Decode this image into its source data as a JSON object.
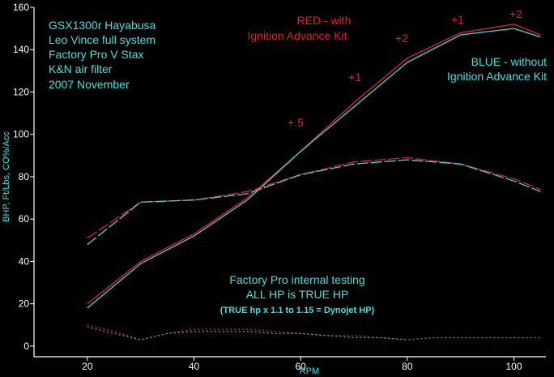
{
  "chart_data": {
    "type": "line",
    "xlabel": "RPM",
    "ylabel": "BHP, Ft/Lbs, CO%/Acc",
    "xlim": [
      10,
      106
    ],
    "ylim": [
      -5,
      160
    ],
    "xticks": [
      20,
      40,
      60,
      80,
      100
    ],
    "yticks": [
      0,
      20,
      40,
      60,
      80,
      100,
      120,
      140,
      160
    ],
    "grid": false,
    "colors": {
      "background": "#000000",
      "axis": "#ffffff",
      "red": "#e0202a",
      "blue": "#3fd8d8",
      "cyan_text": "#40e0e0",
      "green_dotted": "#3fae6a"
    },
    "series": [
      {
        "style": "solid",
        "color": "#e0202a",
        "x": [
          20,
          30,
          40,
          50,
          60,
          70,
          80,
          90,
          100,
          105
        ],
        "y": [
          20,
          40,
          53,
          70,
          92,
          115,
          136,
          148,
          152,
          147
        ]
      },
      {
        "style": "solid",
        "color": "#3fd8d8",
        "x": [
          20,
          30,
          40,
          50,
          60,
          70,
          80,
          90,
          100,
          105
        ],
        "y": [
          18,
          39,
          52,
          69,
          92,
          113,
          134,
          147,
          150,
          146
        ]
      },
      {
        "style": "dashed",
        "color": "#e0202a",
        "x": [
          20,
          30,
          40,
          50,
          60,
          70,
          80,
          90,
          100,
          105
        ],
        "y": [
          51,
          68,
          69,
          73,
          81,
          87,
          89,
          86,
          79,
          74
        ]
      },
      {
        "style": "dashed",
        "color": "#3fd8d8",
        "x": [
          20,
          30,
          40,
          50,
          60,
          70,
          80,
          90,
          100,
          105
        ],
        "y": [
          48,
          68,
          69,
          72,
          81,
          86,
          88,
          86,
          78,
          73
        ]
      },
      {
        "style": "dotted",
        "color": "#e0202a",
        "x": [
          20,
          25,
          30,
          35,
          40,
          45,
          50,
          55,
          60,
          65,
          70,
          75,
          80
        ],
        "y": [
          10,
          7,
          3,
          6,
          8,
          8,
          8,
          7,
          6,
          5,
          5,
          4,
          3
        ]
      },
      {
        "style": "dotted",
        "color": "#3fae6a",
        "x": [
          20,
          25,
          30,
          35,
          40,
          45,
          50,
          55,
          60,
          65,
          70,
          75,
          80,
          85,
          90,
          95,
          100,
          105
        ],
        "y": [
          9,
          6,
          3,
          6,
          7,
          7,
          7,
          6,
          6,
          5,
          4,
          4,
          3,
          4,
          4,
          4,
          4,
          4
        ]
      }
    ],
    "annotations": {
      "info_lines": [
        "GSX1300r Hayabusa",
        "Leo Vince full system",
        "Factory Pro V Stax",
        "K&N air filter",
        "2007 November"
      ],
      "red_legend": [
        "RED - with",
        "Ignition Advance Kit"
      ],
      "blue_legend": [
        "BLUE - without",
        "Ignition Advance Kit"
      ],
      "gains": [
        "+.5",
        "+1",
        "+2",
        "+1",
        "+2"
      ],
      "testing_note": [
        "Factory Pro internal testing",
        "ALL HP is TRUE HP"
      ],
      "conversion_note": "(TRUE hp x 1.1 to 1.15 = Dynojet HP)"
    }
  }
}
